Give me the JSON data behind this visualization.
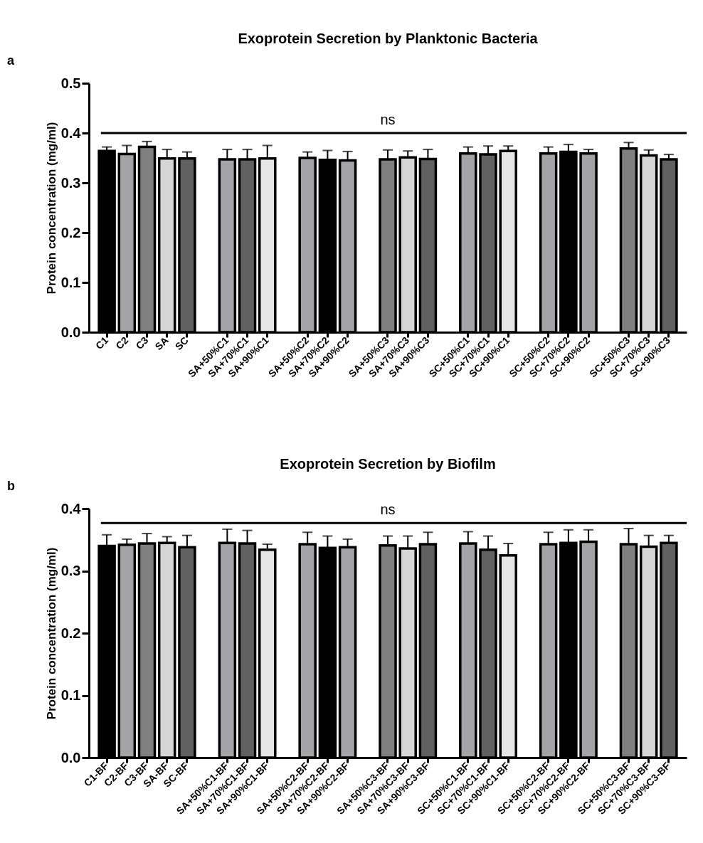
{
  "chart_data": [
    {
      "type": "bar",
      "title": "Exoprotein Secretion by Planktonic Bacteria",
      "ylabel": "Protein concentration (mg/ml)",
      "annotations": [
        "a"
      ],
      "categories": [
        "C1",
        "C2",
        "C3",
        "SA",
        "SC",
        null,
        "SA+50%C1",
        "SA+70%C1",
        "SA+90%C1",
        null,
        "SA+50%C2",
        "SA+70%C2",
        "SA+90%C2",
        null,
        "SA+50%C3",
        "SA+70%C3",
        "SA+90%C3",
        null,
        "SC+50%C1",
        "SC+70%C1",
        "SC+90%C1",
        null,
        "SC+50%C2",
        "SC+70%C2",
        "SC+90%C2",
        null,
        "SC+50%C3",
        "SC+70%C3",
        "SC+90%C3"
      ],
      "values": [
        0.364,
        0.358,
        0.372,
        0.349,
        0.349,
        null,
        0.347,
        0.347,
        0.349,
        null,
        0.35,
        0.346,
        0.345,
        null,
        0.347,
        0.351,
        0.348,
        null,
        0.359,
        0.357,
        0.364,
        null,
        0.359,
        0.362,
        0.359,
        null,
        0.369,
        0.355,
        0.347
      ],
      "errors": [
        0.008,
        0.017,
        0.011,
        0.018,
        0.013,
        null,
        0.02,
        0.02,
        0.026,
        null,
        0.012,
        0.019,
        0.018,
        null,
        0.019,
        0.013,
        0.019,
        null,
        0.013,
        0.017,
        0.01,
        null,
        0.013,
        0.015,
        0.008,
        null,
        0.012,
        0.011,
        0.01
      ],
      "colors": [
        "#000000",
        "#a3a3a8",
        "#808080",
        "#d6d6d6",
        "#616161",
        null,
        "#a3a3a8",
        "#616161",
        "#e6e6e6",
        null,
        "#a3a3a8",
        "#000000",
        "#a3a3a8",
        null,
        "#808080",
        "#d6d6d6",
        "#616161",
        null,
        "#a3a3a8",
        "#616161",
        "#e6e6e6",
        null,
        "#a3a3a8",
        "#000000",
        "#a3a3a8",
        null,
        "#808080",
        "#d6d6d6",
        "#616161"
      ],
      "ylim": [
        0,
        0.5
      ],
      "yticks": [
        {
          "value": 0,
          "label": "0.0"
        },
        0.1,
        0.2,
        0.3,
        0.4,
        0.5
      ],
      "ref_lines": [
        {
          "axis": "y",
          "value": 0.4,
          "label": "ns"
        }
      ],
      "grid": false
    },
    {
      "type": "bar",
      "title": "Exoprotein Secretion by Biofilm",
      "ylabel": "Protein concentration (mg/ml)",
      "annotations": [
        "b"
      ],
      "categories": [
        "C1-BF",
        "C2-BF",
        "C3-BF",
        "SA-BF",
        "SC-BF",
        null,
        "SA+50%C1-BF",
        "SA+70%C1-BF",
        "SA+90%C1-BF",
        null,
        "SA+50%C2-BF",
        "SA+70%C2-BF",
        "SA+90%C2-BF",
        null,
        "SA+50%C3-BF",
        "SA+70%C3-BF",
        "SA+90%C3-BF",
        null,
        "SC+50%C1-BF",
        "SC+70%C1-BF",
        "SC+90%C1-BF",
        null,
        "SC+50%C2-BF",
        "SC+70%C2-BF",
        "SC+90%C2-BF",
        null,
        "SC+50%C3-BF",
        "SC+70%C3-BF",
        "SC+90%C3-BF"
      ],
      "values": [
        0.34,
        0.342,
        0.344,
        0.345,
        0.338,
        null,
        0.345,
        0.344,
        0.334,
        null,
        0.343,
        0.337,
        0.338,
        null,
        0.341,
        0.336,
        0.343,
        null,
        0.344,
        0.334,
        0.325,
        null,
        0.343,
        0.345,
        0.347,
        null,
        0.343,
        0.339,
        0.345
      ],
      "errors": [
        0.018,
        0.009,
        0.016,
        0.01,
        0.019,
        null,
        0.022,
        0.021,
        0.009,
        null,
        0.019,
        0.019,
        0.013,
        null,
        0.015,
        0.02,
        0.019,
        null,
        0.019,
        0.022,
        0.019,
        null,
        0.019,
        0.021,
        0.019,
        null,
        0.025,
        0.018,
        0.012
      ],
      "colors": [
        "#000000",
        "#a3a3a8",
        "#808080",
        "#d6d6d6",
        "#616161",
        null,
        "#a3a3a8",
        "#616161",
        "#e6e6e6",
        null,
        "#a3a3a8",
        "#000000",
        "#a3a3a8",
        null,
        "#808080",
        "#d6d6d6",
        "#616161",
        null,
        "#a3a3a8",
        "#616161",
        "#e6e6e6",
        null,
        "#a3a3a8",
        "#000000",
        "#a3a3a8",
        null,
        "#808080",
        "#d6d6d6",
        "#616161"
      ],
      "ylim": [
        0,
        0.4
      ],
      "yticks": [
        {
          "value": 0,
          "label": "0.0"
        },
        0.1,
        0.2,
        0.3,
        0.4
      ],
      "ref_lines": [
        {
          "axis": "y",
          "value": 0.377,
          "label": "ns"
        }
      ],
      "grid": false
    }
  ]
}
